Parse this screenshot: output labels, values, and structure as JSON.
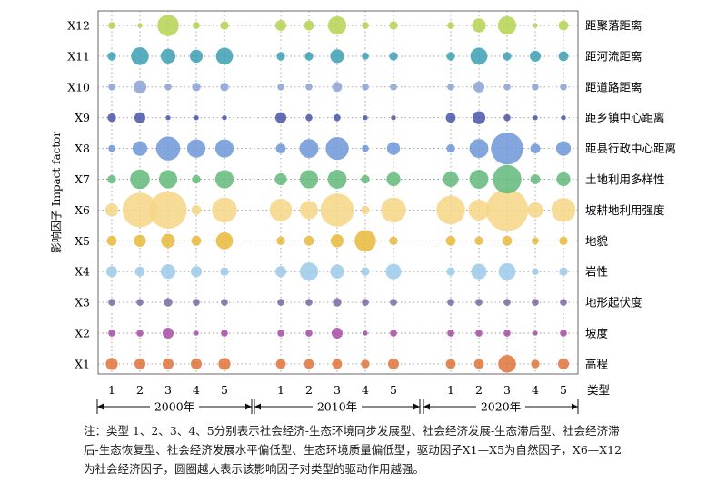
{
  "chart_data": {
    "type": "bubble",
    "ylabel": "影响因子 Impact factor",
    "legend_title": "类型",
    "factors": [
      "X1",
      "X2",
      "X3",
      "X4",
      "X5",
      "X6",
      "X7",
      "X8",
      "X9",
      "X10",
      "X11",
      "X12"
    ],
    "factor_names": [
      "高程",
      "坡度",
      "地形起伏度",
      "岩性",
      "地貌",
      "坡耕地利用强度",
      "土地利用多样性",
      "距县行政中心距离",
      "距乡镇中心距离",
      "距道路距离",
      "距河流距离",
      "距聚落距离"
    ],
    "factor_colors": [
      "#e0733a",
      "#a64ca6",
      "#7a6aa0",
      "#9ccaea",
      "#e8b838",
      "#f6d686",
      "#62b97a",
      "#6f97d8",
      "#4a55a8",
      "#8aa2d4",
      "#3ba0b4",
      "#b4d450"
    ],
    "groups": [
      {
        "label": "2000年",
        "types": [
          "1",
          "2",
          "3",
          "4",
          "5"
        ]
      },
      {
        "label": "2010年",
        "types": [
          "1",
          "2",
          "3",
          "4",
          "5"
        ]
      },
      {
        "label": "2020年",
        "types": [
          "1",
          "2",
          "3",
          "4",
          "5"
        ]
      }
    ],
    "values": [
      [
        0.06,
        0.05,
        0.05,
        0.05,
        0.06,
        0.04,
        0.04,
        0.04,
        0.03,
        0.05,
        0.04,
        0.04,
        0.13,
        0.03,
        0.05
      ],
      [
        0.02,
        0.02,
        0.05,
        0.01,
        0.02,
        0.02,
        0.02,
        0.05,
        0.01,
        0.02,
        0.02,
        0.02,
        0.02,
        0.01,
        0.02
      ],
      [
        0.02,
        0.02,
        0.03,
        0.02,
        0.02,
        0.02,
        0.02,
        0.03,
        0.02,
        0.02,
        0.02,
        0.02,
        0.02,
        0.02,
        0.02
      ],
      [
        0.05,
        0.04,
        0.09,
        0.05,
        0.03,
        0.05,
        0.14,
        0.08,
        0.03,
        0.1,
        0.03,
        0.1,
        0.12,
        0.02,
        0.03
      ],
      [
        0.04,
        0.06,
        0.08,
        0.04,
        0.12,
        0.03,
        0.04,
        0.07,
        0.19,
        0.03,
        0.04,
        0.03,
        0.04,
        0.02,
        0.03
      ],
      [
        0.07,
        0.5,
        0.58,
        0.04,
        0.26,
        0.21,
        0.14,
        0.46,
        0.03,
        0.26,
        0.34,
        0.18,
        0.74,
        0.1,
        0.24
      ],
      [
        0.03,
        0.16,
        0.14,
        0.03,
        0.14,
        0.06,
        0.14,
        0.15,
        0.03,
        0.08,
        0.1,
        0.15,
        0.34,
        0.04,
        0.08
      ],
      [
        0.02,
        0.09,
        0.24,
        0.14,
        0.14,
        0.04,
        0.15,
        0.22,
        0.02,
        0.07,
        0.03,
        0.15,
        0.43,
        0.04,
        0.09
      ],
      [
        0.03,
        0.05,
        0.01,
        0.01,
        0.01,
        0.05,
        0.02,
        0.02,
        0.01,
        0.01,
        0.04,
        0.07,
        0.02,
        0.01,
        0.01
      ],
      [
        0.02,
        0.07,
        0.02,
        0.03,
        0.03,
        0.02,
        0.02,
        0.04,
        0.02,
        0.02,
        0.02,
        0.05,
        0.02,
        0.02,
        0.02
      ],
      [
        0.03,
        0.13,
        0.09,
        0.07,
        0.12,
        0.03,
        0.03,
        0.08,
        0.02,
        0.03,
        0.03,
        0.12,
        0.03,
        0.05,
        0.04
      ],
      [
        0.02,
        0.01,
        0.19,
        0.02,
        0.03,
        0.05,
        0.04,
        0.14,
        0.02,
        0.03,
        0.02,
        0.08,
        0.14,
        0.01,
        0.04
      ]
    ]
  },
  "note": "注：类型 1、2、3、4、5分别表示社会经济-生态环境同步发展型、社会经济发展-生态滞后型、社会经济滞后-生态恢复型、社会经济发展水平偏低型、生态环境质量偏低型，驱动因子X1—X5为自然因子，X6—X12为社会经济因子，圆圈越大表示该影响因子对类型的驱动作用越强。"
}
